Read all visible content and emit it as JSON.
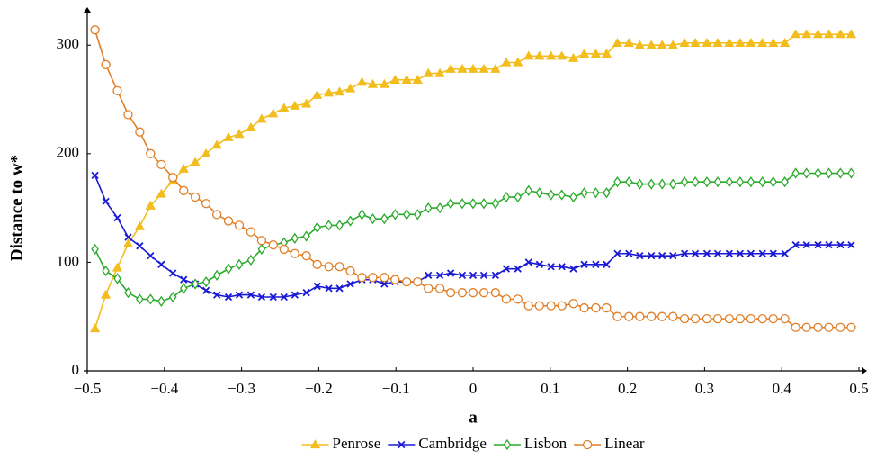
{
  "chart_data": {
    "type": "line",
    "xlabel": "a",
    "ylabel": "Distance to w*",
    "xlim": [
      -0.5,
      0.5
    ],
    "ylim": [
      0,
      335
    ],
    "xticks": [
      {
        "value": -0.5,
        "label": "−0.5"
      },
      {
        "value": -0.4,
        "label": "−0.4"
      },
      {
        "value": -0.3,
        "label": "−0.3"
      },
      {
        "value": -0.2,
        "label": "−0.2"
      },
      {
        "value": -0.1,
        "label": "−0.1"
      },
      0,
      0.1,
      0.2,
      0.3,
      0.4,
      0.5
    ],
    "yticks": [
      0,
      100,
      200,
      300
    ],
    "grid": false,
    "legend": "bottom",
    "x": [
      -0.49,
      -0.476,
      -0.461,
      -0.447,
      -0.432,
      -0.418,
      -0.404,
      -0.389,
      -0.375,
      -0.36,
      -0.346,
      -0.332,
      -0.317,
      -0.303,
      -0.288,
      -0.274,
      -0.259,
      -0.245,
      -0.231,
      -0.216,
      -0.202,
      -0.187,
      -0.173,
      -0.159,
      -0.144,
      -0.13,
      -0.115,
      -0.101,
      -0.086,
      -0.072,
      -0.058,
      -0.043,
      -0.029,
      -0.014,
      0,
      0.014,
      0.029,
      0.043,
      0.058,
      0.072,
      0.086,
      0.101,
      0.115,
      0.13,
      0.144,
      0.159,
      0.173,
      0.187,
      0.202,
      0.216,
      0.231,
      0.245,
      0.259,
      0.274,
      0.288,
      0.303,
      0.317,
      0.332,
      0.346,
      0.36,
      0.375,
      0.389,
      0.404,
      0.418,
      0.432,
      0.447,
      0.461,
      0.476,
      0.49
    ],
    "series": [
      {
        "name": "Penrose",
        "color": "#f2bd1d",
        "marker": "triangle",
        "values": [
          39,
          70,
          95,
          117,
          133,
          152,
          163,
          175,
          186,
          192,
          200,
          208,
          215,
          218,
          224,
          232,
          237,
          242,
          244,
          246,
          254,
          256,
          257,
          260,
          266,
          264,
          264,
          268,
          268,
          268,
          274,
          274,
          278,
          278,
          278,
          278,
          278,
          284,
          284,
          290,
          290,
          290,
          290,
          288,
          292,
          292,
          292,
          302,
          302,
          300,
          300,
          300,
          300,
          302,
          302,
          302,
          302,
          302,
          302,
          302,
          302,
          302,
          302,
          310,
          310,
          310,
          310,
          310,
          310
        ]
      },
      {
        "name": "Cambridge",
        "color": "#1a1ad6",
        "marker": "cross",
        "values": [
          180,
          156,
          141,
          123,
          115,
          106,
          98,
          90,
          84,
          80,
          74,
          70,
          68,
          70,
          70,
          68,
          68,
          68,
          70,
          72,
          78,
          76,
          76,
          80,
          84,
          84,
          80,
          82,
          82,
          82,
          88,
          88,
          90,
          88,
          88,
          88,
          88,
          94,
          94,
          100,
          98,
          96,
          96,
          94,
          98,
          98,
          98,
          108,
          108,
          106,
          106,
          106,
          106,
          108,
          108,
          108,
          108,
          108,
          108,
          108,
          108,
          108,
          108,
          116,
          116,
          116,
          116,
          116,
          116
        ]
      },
      {
        "name": "Lisbon",
        "color": "#2aaa2a",
        "marker": "diamond",
        "values": [
          112,
          92,
          85,
          72,
          66,
          66,
          64,
          68,
          76,
          80,
          82,
          88,
          94,
          98,
          102,
          112,
          116,
          118,
          122,
          124,
          132,
          134,
          134,
          138,
          144,
          140,
          140,
          144,
          144,
          144,
          150,
          150,
          154,
          154,
          154,
          154,
          154,
          160,
          160,
          166,
          164,
          162,
          162,
          160,
          164,
          164,
          164,
          174,
          174,
          172,
          172,
          172,
          172,
          174,
          174,
          174,
          174,
          174,
          174,
          174,
          174,
          174,
          174,
          182,
          182,
          182,
          182,
          182,
          182
        ]
      },
      {
        "name": "Linear",
        "color": "#e07f26",
        "marker": "circle",
        "values": [
          314,
          282,
          258,
          236,
          220,
          200,
          190,
          178,
          166,
          160,
          154,
          144,
          138,
          134,
          128,
          120,
          116,
          112,
          108,
          106,
          98,
          96,
          96,
          92,
          86,
          86,
          86,
          84,
          82,
          82,
          76,
          76,
          72,
          72,
          72,
          72,
          72,
          66,
          66,
          60,
          60,
          60,
          60,
          62,
          58,
          58,
          58,
          50,
          50,
          50,
          50,
          50,
          50,
          48,
          48,
          48,
          48,
          48,
          48,
          48,
          48,
          48,
          48,
          40,
          40,
          40,
          40,
          40,
          40
        ]
      }
    ]
  }
}
